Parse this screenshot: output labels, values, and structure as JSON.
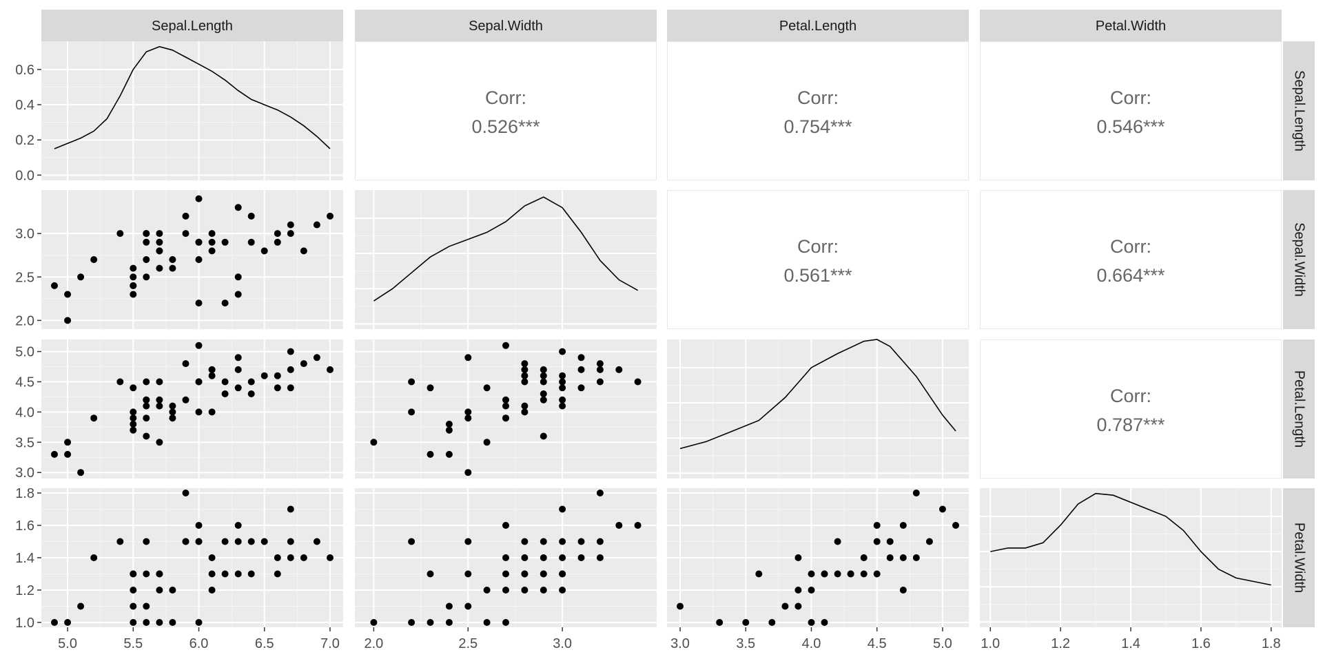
{
  "chart_data": {
    "type": "scatter",
    "title": "",
    "layout": "pairs-matrix",
    "variables": [
      "Sepal.Length",
      "Sepal.Width",
      "Petal.Length",
      "Petal.Width"
    ],
    "axis_ranges": {
      "Sepal.Length": [
        4.8,
        7.1
      ],
      "Sepal.Width": [
        1.9,
        3.5
      ],
      "Petal.Length": [
        2.9,
        5.2
      ],
      "Petal.Width": [
        0.97,
        1.83
      ]
    },
    "x_ticks": {
      "Sepal.Length": [
        5.0,
        5.5,
        6.0,
        6.5,
        7.0
      ],
      "Sepal.Width": [
        2.0,
        2.5,
        3.0
      ],
      "Petal.Length": [
        3.0,
        3.5,
        4.0,
        4.5,
        5.0
      ],
      "Petal.Width": [
        1.0,
        1.2,
        1.4,
        1.6,
        1.8
      ]
    },
    "x_tick_labels": {
      "Sepal.Length": [
        "5.0",
        "5.5",
        "6.0",
        "6.5",
        "7.0"
      ],
      "Sepal.Width": [
        "2.0",
        "2.5",
        "3.0"
      ],
      "Petal.Length": [
        "3.0",
        "3.5",
        "4.0",
        "4.5",
        "5.0"
      ],
      "Petal.Width": [
        "1.0",
        "1.2",
        "1.4",
        "1.6",
        "1.8"
      ]
    },
    "y_ticks": {
      "density": [
        0.0,
        0.2,
        0.4,
        0.6
      ],
      "Sepal.Width": [
        2.0,
        2.5,
        3.0
      ],
      "Petal.Length": [
        3.0,
        3.5,
        4.0,
        4.5,
        5.0
      ],
      "Petal.Width": [
        1.0,
        1.2,
        1.4,
        1.6,
        1.8
      ]
    },
    "y_tick_labels": {
      "density": [
        "0.0",
        "0.2",
        "0.4",
        "0.6"
      ],
      "Sepal.Width": [
        "2.0",
        "2.5",
        "3.0"
      ],
      "Petal.Length": [
        "3.0",
        "3.5",
        "4.0",
        "4.5",
        "5.0"
      ],
      "Petal.Width": [
        "1.0",
        "1.2",
        "1.4",
        "1.6",
        "1.8"
      ]
    },
    "density_ylim": [
      -0.03,
      0.76
    ],
    "correlations": [
      {
        "row": "Sepal.Length",
        "col": "Sepal.Width",
        "label": "Corr:",
        "value": "0.526***"
      },
      {
        "row": "Sepal.Length",
        "col": "Petal.Length",
        "label": "Corr:",
        "value": "0.754***"
      },
      {
        "row": "Sepal.Length",
        "col": "Petal.Width",
        "label": "Corr:",
        "value": "0.546***"
      },
      {
        "row": "Sepal.Width",
        "col": "Petal.Length",
        "label": "Corr:",
        "value": "0.561***"
      },
      {
        "row": "Sepal.Width",
        "col": "Petal.Width",
        "label": "Corr:",
        "value": "0.664***"
      },
      {
        "row": "Petal.Length",
        "col": "Petal.Width",
        "label": "Corr:",
        "value": "0.787***"
      }
    ],
    "densities": [
      {
        "variable": "Sepal.Length",
        "x": [
          4.9,
          5.0,
          5.1,
          5.2,
          5.3,
          5.4,
          5.5,
          5.6,
          5.7,
          5.8,
          5.9,
          6.0,
          6.1,
          6.2,
          6.3,
          6.4,
          6.5,
          6.6,
          6.7,
          6.8,
          6.9,
          7.0
        ],
        "y": [
          0.15,
          0.18,
          0.21,
          0.25,
          0.32,
          0.45,
          0.6,
          0.7,
          0.73,
          0.71,
          0.67,
          0.63,
          0.59,
          0.54,
          0.48,
          0.43,
          0.4,
          0.37,
          0.33,
          0.28,
          0.22,
          0.15
        ]
      },
      {
        "variable": "Sepal.Width",
        "x": [
          2.0,
          2.1,
          2.2,
          2.3,
          2.4,
          2.5,
          2.6,
          2.7,
          2.8,
          2.9,
          3.0,
          3.1,
          3.2,
          3.3,
          3.4
        ],
        "y": [
          0.13,
          0.2,
          0.29,
          0.38,
          0.44,
          0.48,
          0.52,
          0.58,
          0.67,
          0.72,
          0.66,
          0.52,
          0.36,
          0.25,
          0.19
        ]
      },
      {
        "variable": "Petal.Length",
        "x": [
          3.0,
          3.2,
          3.4,
          3.6,
          3.8,
          4.0,
          4.2,
          4.4,
          4.5,
          4.6,
          4.8,
          5.0,
          5.1
        ],
        "y": [
          0.14,
          0.18,
          0.24,
          0.3,
          0.43,
          0.6,
          0.68,
          0.75,
          0.76,
          0.72,
          0.55,
          0.33,
          0.24
        ]
      },
      {
        "variable": "Petal.Width",
        "x": [
          1.0,
          1.05,
          1.1,
          1.15,
          1.2,
          1.25,
          1.3,
          1.35,
          1.4,
          1.45,
          1.5,
          1.55,
          1.6,
          1.65,
          1.7,
          1.75,
          1.8
        ],
        "y": [
          0.4,
          0.42,
          0.42,
          0.45,
          0.55,
          0.67,
          0.73,
          0.72,
          0.68,
          0.64,
          0.6,
          0.52,
          0.4,
          0.3,
          0.25,
          0.23,
          0.21
        ]
      }
    ],
    "scatters": [
      {
        "x_var": "Sepal.Length",
        "y_var": "Sepal.Width",
        "x": [
          4.9,
          5.0,
          5.0,
          5.1,
          5.2,
          5.4,
          5.5,
          5.5,
          5.5,
          5.5,
          5.5,
          5.6,
          5.6,
          5.6,
          5.6,
          5.6,
          5.7,
          5.7,
          5.7,
          5.7,
          5.7,
          5.8,
          5.8,
          5.9,
          5.9,
          6.0,
          6.0,
          6.0,
          6.0,
          6.0,
          6.1,
          6.1,
          6.1,
          6.2,
          6.2,
          6.3,
          6.3,
          6.3,
          6.4,
          6.4,
          6.5,
          6.6,
          6.6,
          6.7,
          6.7,
          6.8,
          6.9,
          7.0
        ],
        "y": [
          2.4,
          2.3,
          2.0,
          2.5,
          2.7,
          3.0,
          2.6,
          2.5,
          2.4,
          2.4,
          2.3,
          3.0,
          2.9,
          2.7,
          3.0,
          2.5,
          3.0,
          2.9,
          2.8,
          2.6,
          2.8,
          2.7,
          2.6,
          3.2,
          3.0,
          3.4,
          2.9,
          2.7,
          2.2,
          2.9,
          3.0,
          2.8,
          2.9,
          2.9,
          2.2,
          3.3,
          2.5,
          2.3,
          3.2,
          2.9,
          2.8,
          3.0,
          2.9,
          3.1,
          3.0,
          2.8,
          3.1,
          3.2
        ]
      },
      {
        "x_var": "Sepal.Length",
        "y_var": "Petal.Length",
        "x": [
          4.9,
          5.0,
          5.0,
          5.1,
          5.2,
          5.4,
          5.5,
          5.5,
          5.5,
          5.5,
          5.5,
          5.6,
          5.6,
          5.6,
          5.6,
          5.6,
          5.6,
          5.7,
          5.7,
          5.7,
          5.7,
          5.8,
          5.8,
          5.8,
          5.9,
          5.9,
          6.0,
          6.0,
          6.0,
          6.0,
          6.1,
          6.1,
          6.1,
          6.1,
          6.2,
          6.2,
          6.3,
          6.3,
          6.3,
          6.4,
          6.4,
          6.5,
          6.6,
          6.6,
          6.7,
          6.7,
          6.7,
          6.8,
          6.9,
          7.0
        ],
        "y": [
          3.3,
          3.5,
          3.3,
          3.0,
          3.9,
          4.5,
          4.4,
          4.0,
          3.8,
          3.7,
          3.9,
          4.5,
          4.2,
          4.1,
          4.2,
          3.6,
          3.9,
          4.5,
          4.2,
          4.1,
          3.5,
          4.1,
          4.0,
          3.9,
          4.8,
          4.2,
          5.1,
          4.5,
          4.0,
          4.5,
          4.7,
          4.6,
          4.7,
          4.0,
          4.5,
          4.3,
          4.9,
          4.7,
          4.4,
          4.5,
          4.3,
          4.6,
          4.6,
          4.4,
          5.0,
          4.7,
          4.4,
          4.8,
          4.9,
          4.7
        ]
      },
      {
        "x_var": "Sepal.Length",
        "y_var": "Petal.Width",
        "x": [
          4.9,
          5.0,
          5.1,
          5.2,
          5.4,
          5.5,
          5.5,
          5.5,
          5.5,
          5.5,
          5.6,
          5.6,
          5.6,
          5.6,
          5.7,
          5.7,
          5.7,
          5.7,
          5.8,
          5.8,
          5.9,
          5.9,
          5.9,
          6.0,
          6.0,
          6.0,
          6.0,
          6.1,
          6.1,
          6.1,
          6.2,
          6.2,
          6.3,
          6.3,
          6.3,
          6.4,
          6.4,
          6.5,
          6.6,
          6.6,
          6.7,
          6.7,
          6.7,
          6.8,
          6.9,
          7.0
        ],
        "y": [
          1.0,
          1.0,
          1.1,
          1.4,
          1.5,
          1.3,
          1.2,
          1.1,
          1.0,
          1.3,
          1.5,
          1.3,
          1.1,
          1.0,
          1.3,
          1.3,
          1.2,
          1.0,
          1.2,
          1.0,
          1.8,
          1.5,
          1.5,
          1.6,
          1.5,
          1.0,
          1.5,
          1.4,
          1.2,
          1.3,
          1.5,
          1.3,
          1.6,
          1.5,
          1.3,
          1.5,
          1.3,
          1.5,
          1.4,
          1.3,
          1.7,
          1.5,
          1.4,
          1.4,
          1.5,
          1.4
        ]
      },
      {
        "x_var": "Sepal.Width",
        "y_var": "Petal.Length",
        "x": [
          2.0,
          2.2,
          2.2,
          2.3,
          2.3,
          2.4,
          2.4,
          2.4,
          2.5,
          2.5,
          2.5,
          2.5,
          2.6,
          2.6,
          2.7,
          2.7,
          2.7,
          2.7,
          2.7,
          2.8,
          2.8,
          2.8,
          2.8,
          2.8,
          2.8,
          2.9,
          2.9,
          2.9,
          2.9,
          2.9,
          2.9,
          3.0,
          3.0,
          3.0,
          3.0,
          3.0,
          3.0,
          3.1,
          3.1,
          3.1,
          3.2,
          3.2,
          3.2,
          3.3,
          3.4
        ],
        "y": [
          3.5,
          4.5,
          4.0,
          4.4,
          3.3,
          3.8,
          3.7,
          3.3,
          4.9,
          4.0,
          3.9,
          3.0,
          4.4,
          3.5,
          5.1,
          4.2,
          4.1,
          3.9,
          3.9,
          4.8,
          4.7,
          4.6,
          4.5,
          4.1,
          4.0,
          4.6,
          4.5,
          4.3,
          4.2,
          3.6,
          4.7,
          5.0,
          4.6,
          4.5,
          4.4,
          4.2,
          4.1,
          4.7,
          4.4,
          4.9,
          4.8,
          4.5,
          4.7,
          4.7,
          4.5
        ]
      },
      {
        "x_var": "Sepal.Width",
        "y_var": "Petal.Width",
        "x": [
          2.0,
          2.2,
          2.2,
          2.3,
          2.3,
          2.4,
          2.4,
          2.5,
          2.5,
          2.5,
          2.6,
          2.6,
          2.7,
          2.7,
          2.7,
          2.7,
          2.7,
          2.8,
          2.8,
          2.8,
          2.8,
          2.8,
          2.9,
          2.9,
          2.9,
          2.9,
          2.9,
          3.0,
          3.0,
          3.0,
          3.0,
          3.0,
          3.0,
          3.1,
          3.1,
          3.2,
          3.2,
          3.2,
          3.3,
          3.4
        ],
        "y": [
          1.0,
          1.5,
          1.0,
          1.3,
          1.0,
          1.1,
          1.0,
          1.5,
          1.3,
          1.1,
          1.2,
          1.0,
          1.6,
          1.4,
          1.3,
          1.2,
          1.0,
          1.5,
          1.4,
          1.3,
          1.3,
          1.2,
          1.5,
          1.4,
          1.3,
          1.3,
          1.2,
          1.7,
          1.5,
          1.4,
          1.3,
          1.3,
          1.2,
          1.5,
          1.4,
          1.8,
          1.5,
          1.4,
          1.6,
          1.6
        ]
      },
      {
        "x_var": "Petal.Length",
        "y_var": "Petal.Width",
        "x": [
          3.0,
          3.3,
          3.5,
          3.6,
          3.7,
          3.8,
          3.9,
          3.9,
          3.9,
          4.0,
          4.0,
          4.0,
          4.1,
          4.1,
          4.1,
          4.2,
          4.2,
          4.3,
          4.3,
          4.4,
          4.4,
          4.5,
          4.5,
          4.5,
          4.6,
          4.6,
          4.7,
          4.7,
          4.7,
          4.8,
          4.8,
          4.9,
          5.0,
          5.1
        ],
        "y": [
          1.1,
          1.0,
          1.0,
          1.3,
          1.0,
          1.1,
          1.4,
          1.2,
          1.1,
          1.3,
          1.0,
          1.2,
          1.3,
          1.0,
          1.3,
          1.5,
          1.3,
          1.3,
          1.3,
          1.4,
          1.3,
          1.5,
          1.6,
          1.3,
          1.5,
          1.4,
          1.6,
          1.4,
          1.2,
          1.8,
          1.4,
          1.5,
          1.7,
          1.6
        ]
      }
    ]
  }
}
